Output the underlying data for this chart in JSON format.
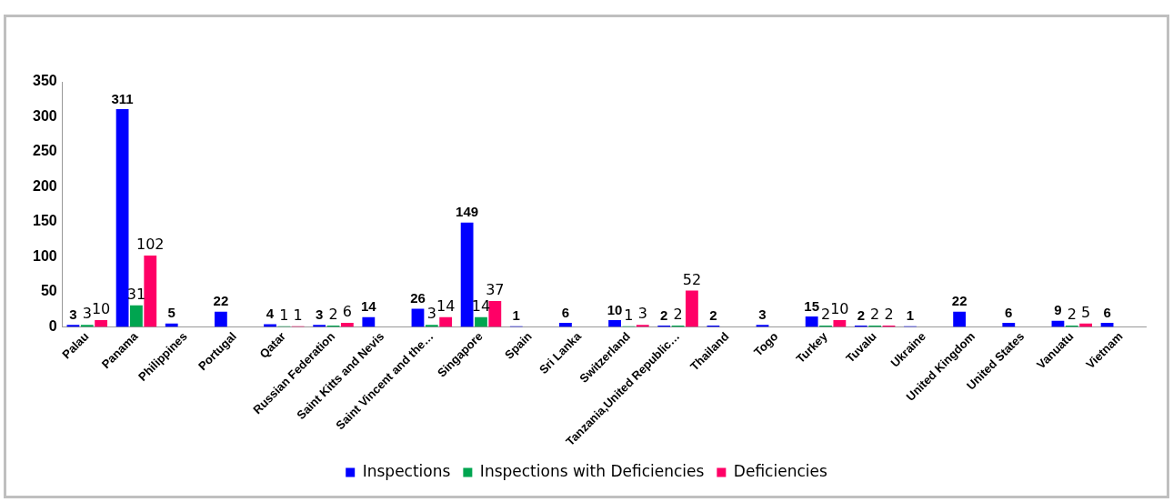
{
  "chart_data": {
    "type": "bar",
    "categories": [
      "Palau",
      "Panama",
      "Philippines",
      "Portugal",
      "Qatar",
      "Russian Federation",
      "Saint Kitts and Nevis",
      "Saint Vincent and the…",
      "Singapore",
      "Spain",
      "Sri Lanka",
      "Switzerland",
      "Tanzania,United Republic…",
      "Thailand",
      "Togo",
      "Turkey",
      "Tuvalu",
      "Ukraine",
      "United Kingdom",
      "United States",
      "Vanuatu",
      "Vietnam"
    ],
    "series": [
      {
        "name": "Inspections",
        "color": "#0000ff",
        "values": [
          3,
          311,
          5,
          22,
          4,
          3,
          14,
          26,
          149,
          1,
          6,
          10,
          2,
          2,
          3,
          15,
          2,
          1,
          22,
          6,
          9,
          6
        ]
      },
      {
        "name": "Inspections with Deficiencies",
        "color": "#00a550",
        "values": [
          3,
          31,
          null,
          null,
          1,
          2,
          null,
          3,
          14,
          null,
          null,
          1,
          2,
          null,
          null,
          2,
          2,
          null,
          null,
          null,
          2,
          null
        ]
      },
      {
        "name": "Deficiencies",
        "color": "#ff0066",
        "values": [
          10,
          102,
          null,
          null,
          1,
          6,
          null,
          14,
          37,
          null,
          null,
          3,
          52,
          null,
          null,
          10,
          2,
          null,
          null,
          null,
          5,
          null
        ]
      }
    ],
    "ylim": [
      0,
      350
    ],
    "yticks": [
      0,
      50,
      100,
      150,
      200,
      250,
      300,
      350
    ],
    "grid": false,
    "legend": "bottom",
    "data_labels": true
  }
}
